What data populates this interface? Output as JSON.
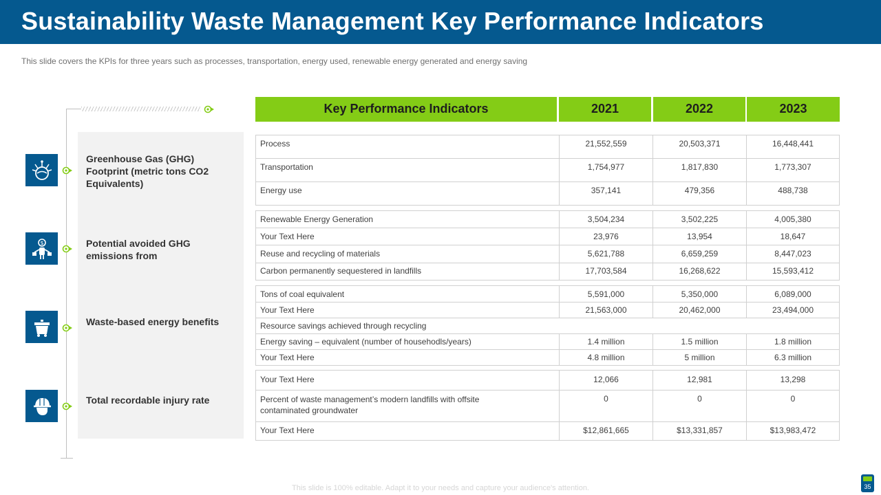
{
  "title": "Sustainability Waste Management Key Performance Indicators",
  "subtitle": "This slide covers the KPIs for three years such as processes, transportation, energy used, renewable energy generated and energy saving",
  "colors": {
    "primary": "#05598f",
    "accent": "#84cc16",
    "panel": "#f2f2f2"
  },
  "categories": [
    {
      "icon": "planet-smoke-icon",
      "label": "Greenhouse Gas (GHG) Footprint (metric tons CO2 Equivalents)"
    },
    {
      "icon": "money-person-icon",
      "label": "Potential avoided GHG emissions from"
    },
    {
      "icon": "dumpster-icon",
      "label": "Waste-based energy benefits"
    },
    {
      "icon": "worker-helmet-icon",
      "label": "Total recordable injury rate"
    }
  ],
  "table": {
    "headers": [
      "Key Performance Indicators",
      "2021",
      "2022",
      "2023"
    ],
    "groups": [
      {
        "rows": [
          {
            "name": "Process",
            "v": [
              "21,552,559",
              "20,503,371",
              "16,448,441"
            ]
          },
          {
            "name": "Transportation",
            "v": [
              "1,754,977",
              "1,817,830",
              "1,773,307"
            ]
          },
          {
            "name": "Energy use",
            "v": [
              "357,141",
              "479,356",
              "488,738"
            ]
          }
        ]
      },
      {
        "rows": [
          {
            "name": "Renewable Energy Generation",
            "v": [
              "3,504,234",
              "3,502,225",
              "4,005,380"
            ]
          },
          {
            "name": "Your Text Here",
            "v": [
              "23,976",
              "13,954",
              "18,647"
            ]
          },
          {
            "name": "Reuse and recycling of materials",
            "v": [
              "5,621,788",
              "6,659,259",
              "8,447,023"
            ]
          },
          {
            "name": "Carbon permanently sequestered in landfills",
            "v": [
              "17,703,584",
              "16,268,622",
              "15,593,412"
            ]
          }
        ]
      },
      {
        "rows": [
          {
            "name": "Tons of coal equivalent",
            "v": [
              "5,591,000",
              "5,350,000",
              "6,089,000"
            ]
          },
          {
            "name": "Your Text Here",
            "v": [
              "21,563,000",
              "20,462,000",
              "23,494,000"
            ]
          },
          {
            "name": "Resource savings achieved through recycling",
            "v": []
          },
          {
            "name": "Energy saving – equivalent (number of househodls/years)",
            "v": [
              "1.4 million",
              "1.5 million",
              "1.8 million"
            ]
          },
          {
            "name": "Your Text Here",
            "v": [
              "4.8 million",
              "5 million",
              "6.3 million"
            ]
          }
        ]
      },
      {
        "rows": [
          {
            "name": "Your Text Here",
            "v": [
              "12,066",
              "12,981",
              "13,298"
            ]
          },
          {
            "name": "Percent of waste management’s modern landfills with offsite contaminated groundwater",
            "v": [
              "0",
              "0",
              "0"
            ]
          },
          {
            "name": "Your Text Here",
            "v": [
              "$12,861,665",
              "$13,331,857",
              "$13,983,472"
            ]
          }
        ]
      }
    ]
  },
  "footnote": "This slide is 100% editable. Adapt it to your needs and capture your audience's attention.",
  "page_number": "35"
}
